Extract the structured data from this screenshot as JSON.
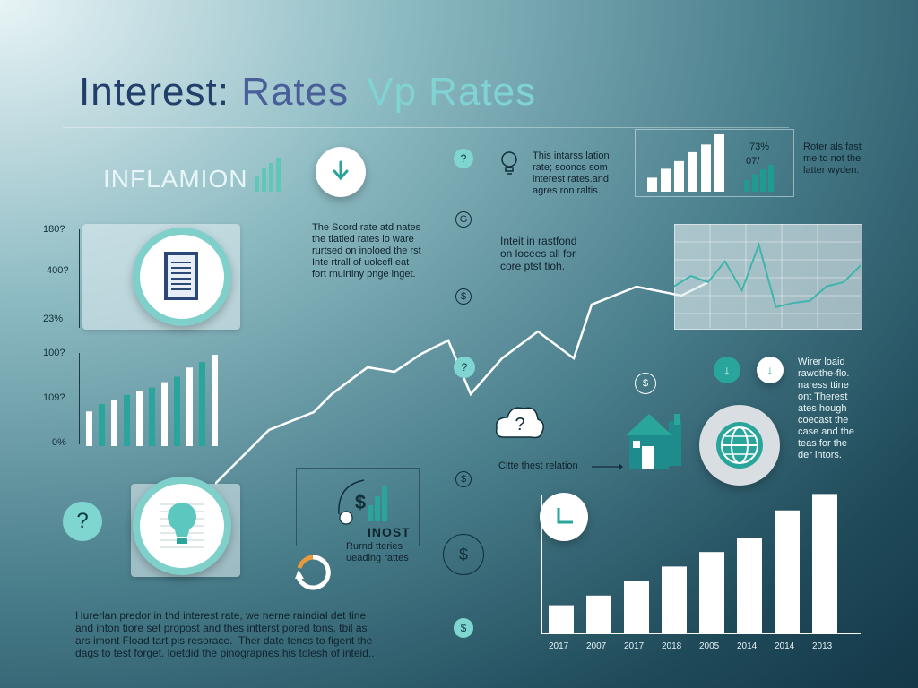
{
  "header": {
    "title_part1": "Interest: ",
    "title_part2": "Rates",
    "title_part3": "Vp Rates"
  },
  "inflation_label": "INFLAMION",
  "left_top_card": {
    "y_labels": [
      "180?",
      "400?",
      "23%"
    ]
  },
  "left_bar_chart": {
    "y_labels": [
      "100?",
      "109?",
      "0%"
    ],
    "values": [
      38,
      46,
      50,
      56,
      60,
      64,
      70,
      76,
      86,
      92,
      100
    ]
  },
  "text_blocks": {
    "mid_note": "The Scord rate atd nates\nthe tlatied rates lo ware\nrurtsed on inoloed the rst\nInte rtrall of uolcefl eat\nfort rnuirtiny pnge inget.",
    "top_note": "This intarss lation\nrate; sooncs som\ninterest rates.and\nagres ron raltis.",
    "right_top_note": "Roter als fast\nme to not the\nlatter wyden.",
    "center_note": "Inteit in rastfond\non locees all for\ncore ptst tioh.",
    "right_mid_note": "Wirer loaid\nrawdthe-flo.\nnaress ttine\nont Therest\nates hough\ncoecast the\ncase and the\nteas for the\nder intors.",
    "bottom_note": "Hurerlan predor in thd interest rate, we nerne raindial det tine\nand inton tiore set propost and thes intterst pored tons, tbil as\nars imont Fload tart pis resorace.  Ther date tencs to figent the\ndags to test forget. loetdid the pinograpnes,his tolesh of inteid..",
    "house_note": "Citte thest relation",
    "inost_title": "INOST",
    "inost_sub": "Rurnd tteries\nueading rattes"
  },
  "top_mini_chart": {
    "values": [
      22,
      36,
      48,
      62,
      74,
      90
    ],
    "pct_labels": [
      "73%",
      "07/"
    ],
    "mini_values": [
      30,
      45,
      58,
      70
    ]
  },
  "timeline": {
    "nodes": [
      "?",
      "G",
      "$",
      "?",
      "$",
      "$",
      "$"
    ]
  },
  "right_panel_chart": {
    "values": [
      40,
      45,
      42,
      52,
      38,
      60,
      30,
      32,
      33,
      40,
      42,
      50
    ]
  },
  "bottom_right_chart": {
    "type": "bar",
    "categories": [
      "2017",
      "2007",
      "2017",
      "2018",
      "2005",
      "2014",
      "2014",
      "2013"
    ],
    "values": [
      30,
      40,
      55,
      70,
      85,
      100,
      128,
      145
    ]
  },
  "colors": {
    "teal": "#7fcfca",
    "dark_teal": "#1e8c8c",
    "navy": "#223f6b"
  },
  "icons": {
    "check": "check-icon",
    "document": "document-icon",
    "bulb": "lightbulb-icon",
    "question": "question-icon",
    "house": "house-icon",
    "globe": "globe-icon",
    "clock": "clock-icon",
    "dollar": "dollar-icon",
    "refresh": "refresh-icon"
  }
}
